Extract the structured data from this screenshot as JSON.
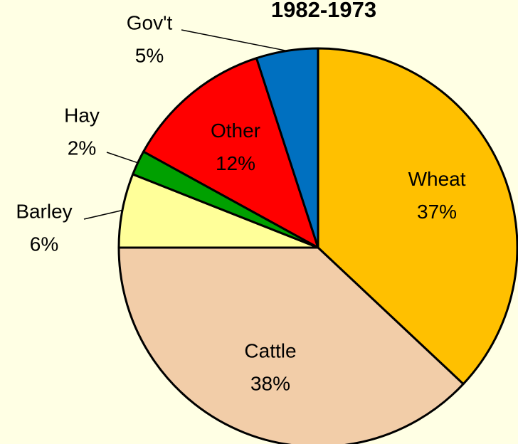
{
  "chart_data": {
    "type": "pie",
    "title": "1982-1973",
    "categories": [
      "Wheat",
      "Cattle",
      "Barley",
      "Hay",
      "Other",
      "Gov't"
    ],
    "values": [
      37,
      38,
      6,
      2,
      12,
      5
    ],
    "value_labels": [
      "37%",
      "38%",
      "6%",
      "2%",
      "12%",
      "5%"
    ],
    "colors": [
      "#FFC000",
      "#F2CDA8",
      "#FFFF99",
      "#00A000",
      "#FF0000",
      "#0070C0"
    ]
  }
}
